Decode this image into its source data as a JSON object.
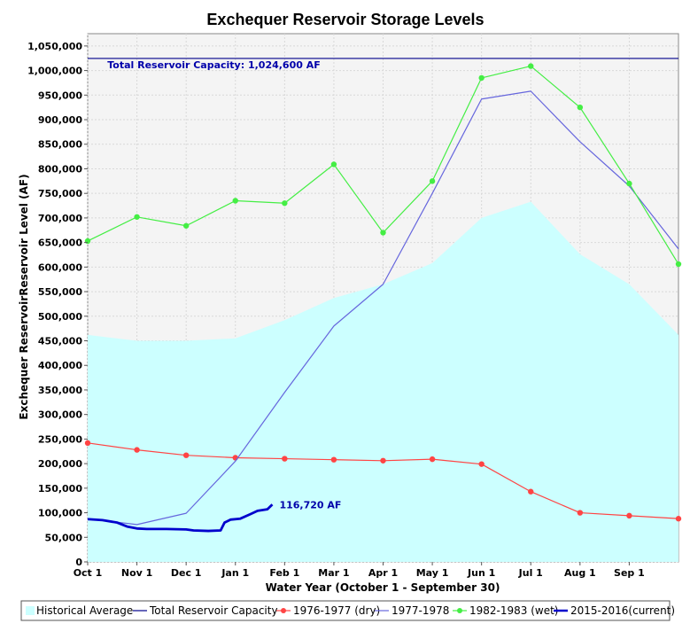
{
  "chart_data": {
    "type": "line",
    "title": "Exchequer Reservoir Storage Levels",
    "xlabel": "Water Year (October 1 - September 30)",
    "ylabel": "Exchequer ReservoirReservoir Level (AF)",
    "ylim": [
      0,
      1075000
    ],
    "xlim": [
      0,
      12
    ],
    "yticks": [
      0,
      50000,
      100000,
      150000,
      200000,
      250000,
      300000,
      350000,
      400000,
      450000,
      500000,
      550000,
      600000,
      650000,
      700000,
      750000,
      800000,
      850000,
      900000,
      950000,
      1000000,
      1050000
    ],
    "ytick_labels": [
      "0",
      "50,000",
      "100,000",
      "150,000",
      "200,000",
      "250,000",
      "300,000",
      "350,000",
      "400,000",
      "450,000",
      "500,000",
      "550,000",
      "600,000",
      "650,000",
      "700,000",
      "750,000",
      "800,000",
      "850,000",
      "900,000",
      "950,000",
      "1,000,000",
      "1,050,000"
    ],
    "categories": [
      "Oct 1",
      "Nov 1",
      "Dec 1",
      "Jan 1",
      "Feb 1",
      "Mar 1",
      "Apr 1",
      "May 1",
      "Jun 1",
      "Jul 1",
      "Aug 1",
      "Sep 1"
    ],
    "grid": true,
    "legend_position": "bottom",
    "colors": {
      "historical": "#ccffff",
      "capacity": "#00008b",
      "dry": "#ff4444",
      "y1977": "#6666dd",
      "wet": "#44ee44",
      "current": "#0000cc",
      "annotation": "#0000aa"
    },
    "series": [
      {
        "name": "Historical Average",
        "kind": "area",
        "color": "#ccffff",
        "x": [
          0,
          1,
          2,
          3,
          4,
          5,
          6,
          7,
          8,
          9,
          10,
          11,
          12
        ],
        "values": [
          462000,
          450000,
          450000,
          455000,
          492000,
          537000,
          565000,
          608000,
          700000,
          733000,
          626000,
          565000,
          462000
        ]
      },
      {
        "name": "Total Reservoir Capacity",
        "kind": "hline",
        "color": "#00008b",
        "value": 1024600
      },
      {
        "name": "1976-1977 (dry)",
        "kind": "line-markers",
        "color": "#ff4444",
        "x": [
          0,
          1,
          2,
          3,
          4,
          5,
          6,
          7,
          8,
          9,
          10,
          11,
          12
        ],
        "values": [
          242000,
          228000,
          217000,
          212000,
          210000,
          208000,
          206000,
          209000,
          199000,
          143000,
          100000,
          94000,
          88000
        ]
      },
      {
        "name": "1977-1978",
        "kind": "line",
        "color": "#6666dd",
        "x": [
          0,
          1,
          2,
          3,
          4,
          5,
          6,
          7,
          8,
          9,
          10,
          11,
          12
        ],
        "values": [
          88000,
          76000,
          99000,
          205000,
          345000,
          480000,
          565000,
          750000,
          942000,
          958000,
          855000,
          765000,
          637000
        ]
      },
      {
        "name": "1982-1983 (wet)",
        "kind": "line-markers",
        "color": "#44ee44",
        "x": [
          0,
          1,
          2,
          3,
          4,
          5,
          6,
          7,
          8,
          9,
          10,
          11,
          12
        ],
        "values": [
          653000,
          702000,
          684000,
          735000,
          730000,
          809000,
          670000,
          775000,
          985000,
          1009000,
          925000,
          770000,
          606000
        ]
      },
      {
        "name": "2015-2016(current)",
        "kind": "thick-line",
        "color": "#0000cc",
        "x": [
          0,
          0.3,
          0.6,
          0.8,
          1.0,
          1.2,
          1.6,
          2.0,
          2.15,
          2.45,
          2.7,
          2.78,
          2.9,
          3.1,
          3.3,
          3.45,
          3.65,
          3.75
        ],
        "values": [
          87000,
          85000,
          80000,
          72000,
          68000,
          67000,
          67000,
          66000,
          64000,
          63000,
          64000,
          80000,
          86000,
          88000,
          97000,
          104000,
          107000,
          116720
        ]
      }
    ],
    "annotations": [
      {
        "text": "Total Reservoir Capacity: 1,024,600 AF",
        "x": 0.4,
        "y": 1024600,
        "color": "#0000aa"
      },
      {
        "text": "116,720 AF",
        "x": 3.75,
        "y": 116720,
        "color": "#0000aa"
      }
    ]
  }
}
